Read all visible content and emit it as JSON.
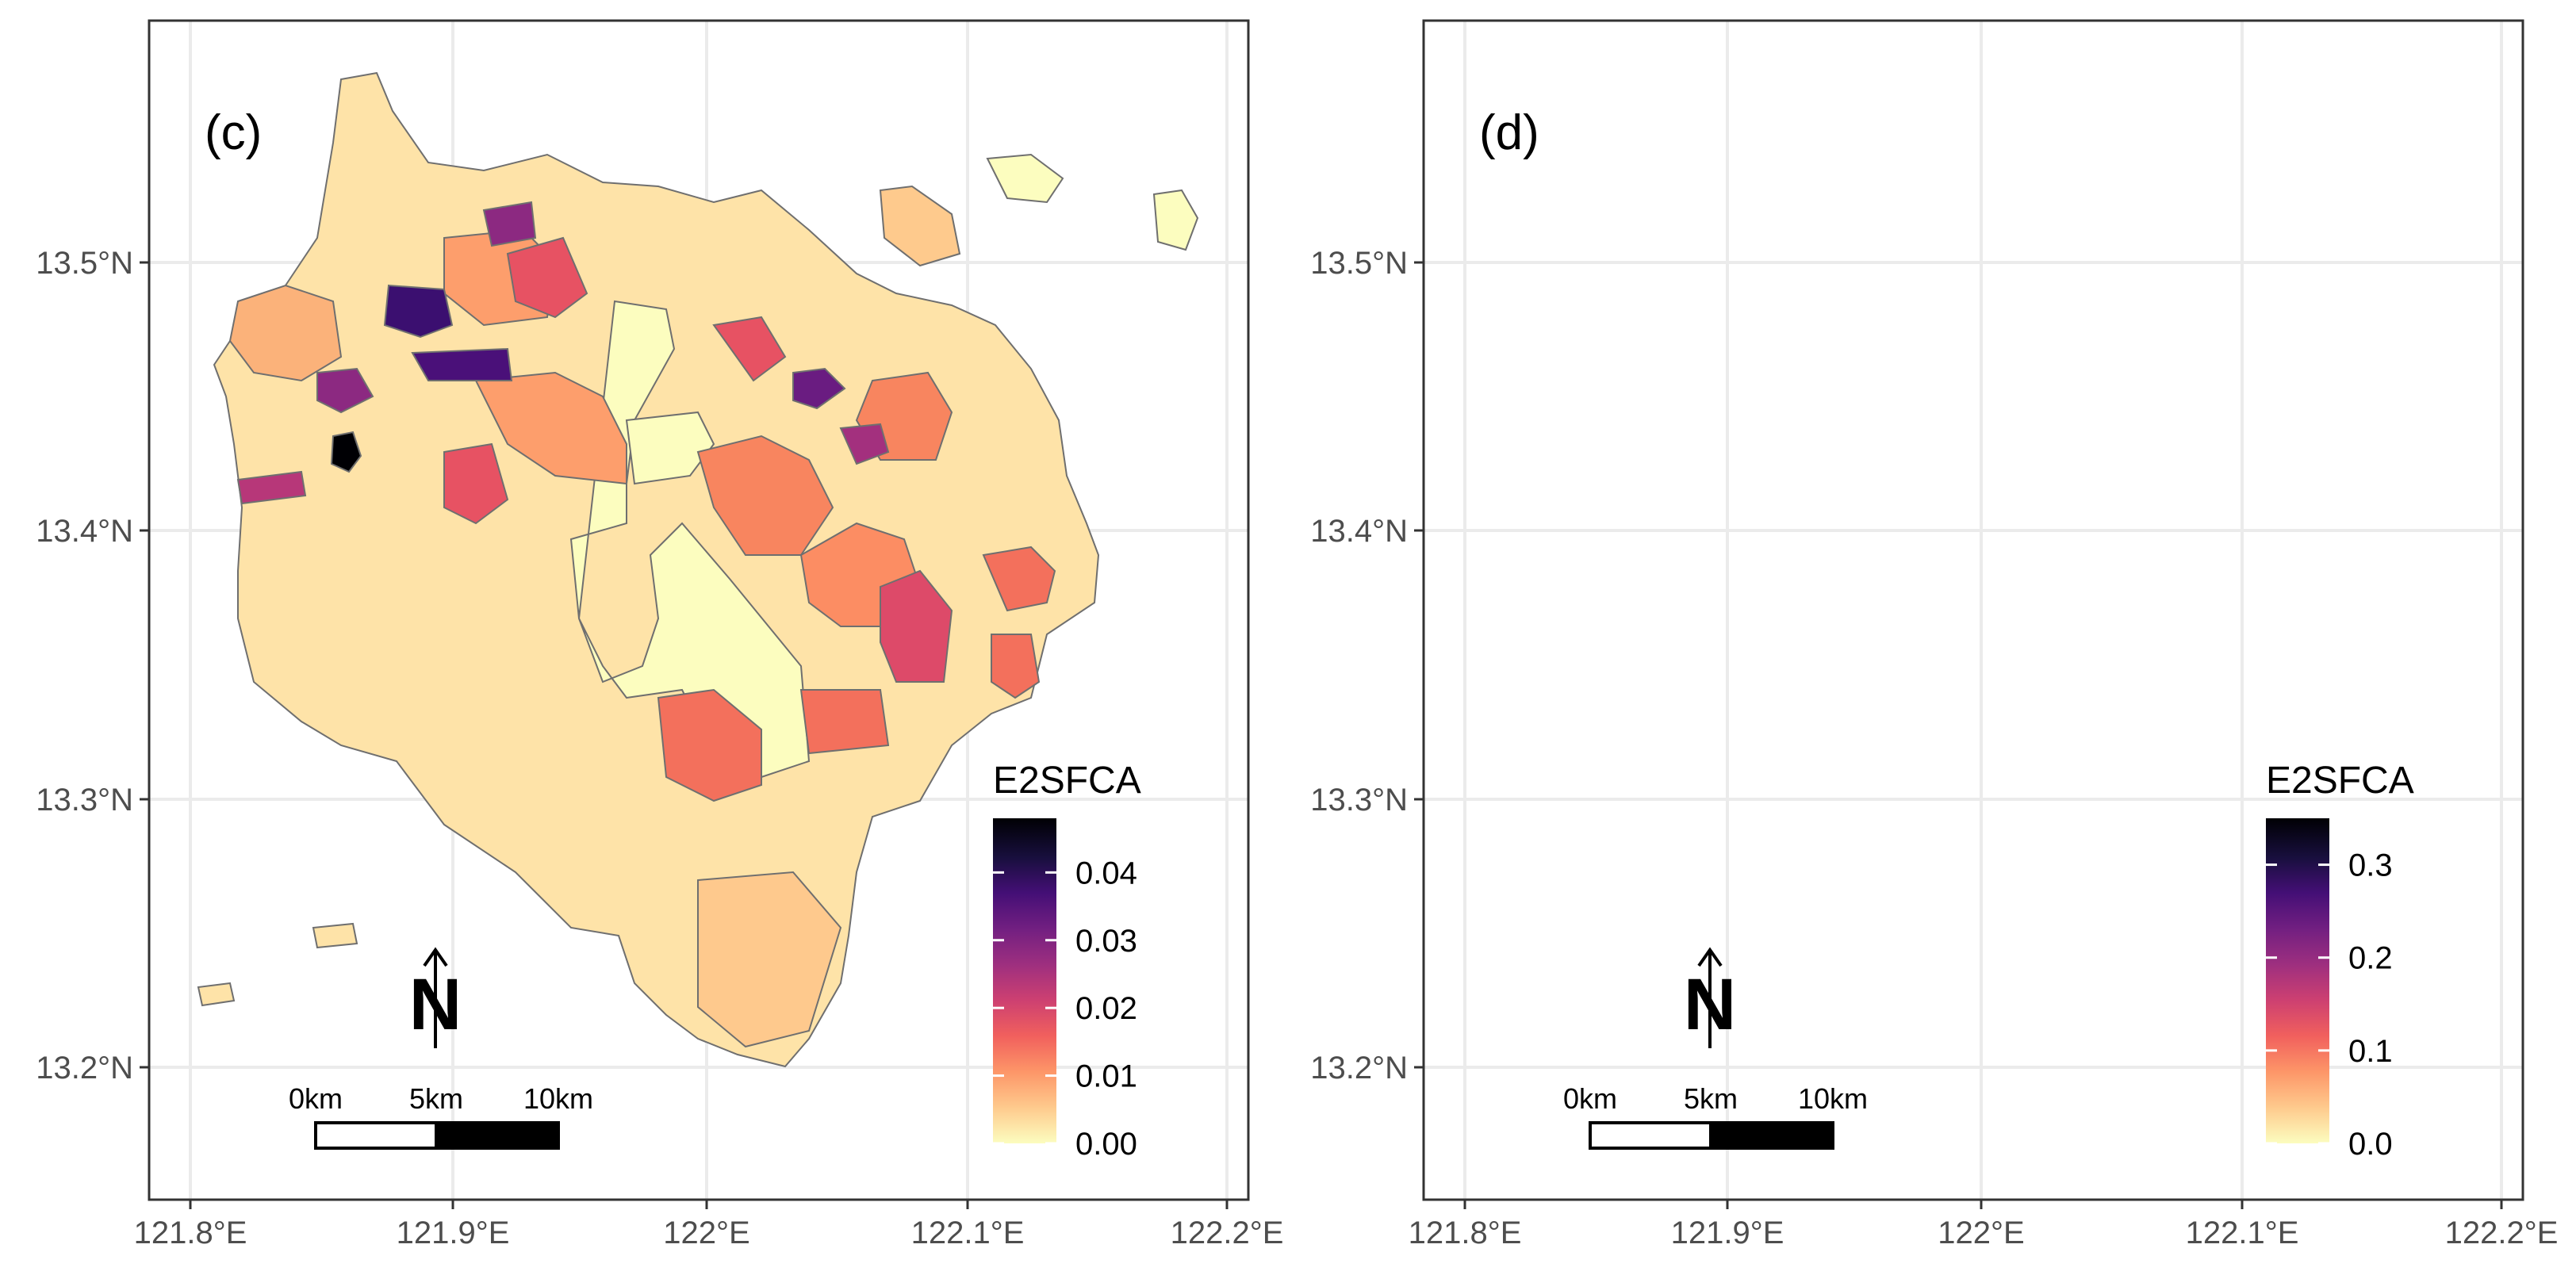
{
  "colors": {
    "background": "#ffffff",
    "grid": "#ebebeb",
    "panel_border": "#333333",
    "region_stroke": "#6f6f6f",
    "ramp": [
      "#fcfdbf",
      "#feca8d",
      "#fd9668",
      "#f1605d",
      "#cd4071",
      "#9e2f7f",
      "#721f81",
      "#440f76",
      "#180f3d",
      "#000004"
    ]
  },
  "panels": [
    {
      "tag": "(c)",
      "legend": {
        "title": "E2SFCA",
        "max": 0.048,
        "ticks": [
          "0.04",
          "0.03",
          "0.02",
          "0.01",
          "0.00"
        ]
      },
      "x_ticks": [
        "121.8°E",
        "121.9°E",
        "122°E",
        "122.1°E",
        "122.2°E"
      ],
      "y_ticks": [
        "13.5°N",
        "13.4°N",
        "13.3°N",
        "13.2°N"
      ],
      "scalebar": {
        "labels": [
          "0km",
          "5km",
          "10km"
        ]
      },
      "north_arrow": {
        "label": "N"
      }
    },
    {
      "tag": "(d)",
      "legend": {
        "title": "E2SFCA",
        "max": 0.35,
        "ticks": [
          "0.3",
          "0.2",
          "0.1",
          "0.0"
        ]
      },
      "x_ticks": [
        "121.8°E",
        "121.9°E",
        "122°E",
        "122.1°E",
        "122.2°E"
      ],
      "y_ticks": [
        "13.5°N",
        "13.4°N",
        "13.3°N",
        "13.2°N"
      ],
      "scalebar": {
        "labels": [
          "0km",
          "5km",
          "10km"
        ]
      },
      "north_arrow": {
        "label": "N"
      }
    }
  ]
}
